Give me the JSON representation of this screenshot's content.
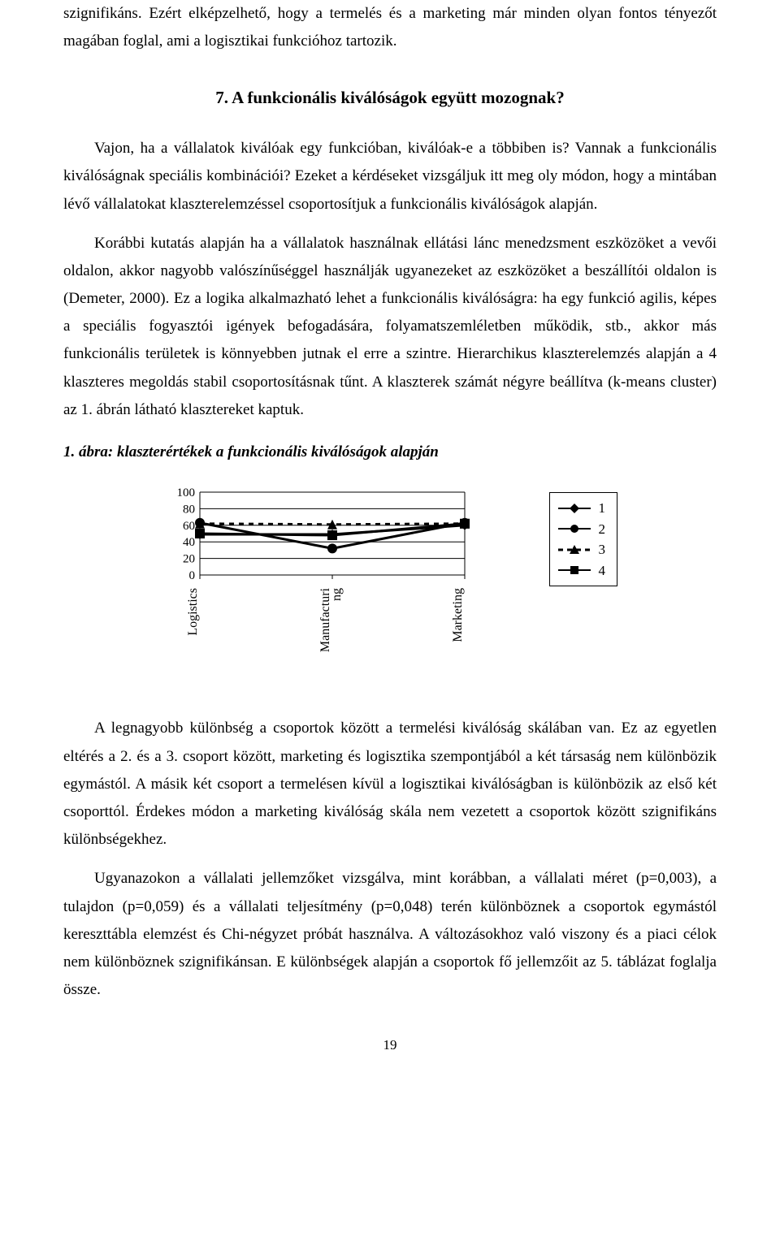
{
  "paragraphs": {
    "p1": "szignifikáns. Ezért elképzelhető, hogy a termelés és a marketing már minden olyan fontos tényezőt magában foglal, ami a logisztikai funkcióhoz tartozik.",
    "heading": "7. A funkcionális kiválóságok együtt mozognak?",
    "p2": "Vajon, ha a vállalatok kiválóak egy funkcióban, kiválóak-e a többiben is? Vannak a funkcionális kiválóságnak speciális kombinációi? Ezeket a kérdéseket vizsgáljuk itt meg oly módon, hogy a mintában lévő vállalatokat klaszterelemzéssel csoportosítjuk a funkcionális kiválóságok alapján.",
    "p3": "Korábbi kutatás alapján ha a vállalatok használnak ellátási lánc menedzsment eszközöket a vevői oldalon, akkor nagyobb valószínűséggel használják ugyanezeket az eszközöket a beszállítói oldalon is (Demeter, 2000). Ez a logika alkalmazható lehet a funkcionális kiválóságra: ha egy funkció agilis, képes a speciális fogyasztói igények befogadására, folyamatszemléletben működik, stb., akkor más funkcionális területek is könnyebben jutnak el erre a szintre. Hierarchikus klaszterelemzés alapján a 4 klaszteres megoldás stabil csoportosításnak tűnt. A klaszterek számát négyre beállítva (k-means cluster) az 1. ábrán látható klasztereket kaptuk.",
    "caption": "1. ábra: klaszterértékek a funkcionális kiválóságok alapján",
    "p4": "A legnagyobb különbség a csoportok között a termelési kiválóság skálában van. Ez az egyetlen eltérés a 2. és a 3. csoport között, marketing és logisztika szempontjából a két társaság nem különbözik egymástól. A másik két csoport a termelésen kívül a logisztikai kiválóságban is különbözik az első két csoporttól. Érdekes módon a marketing kiválóság skála nem vezetett a csoportok között szignifikáns különbségekhez.",
    "p5": "Ugyanazokon a vállalati jellemzőket vizsgálva, mint korábban, a vállalati méret (p=0,003), a tulajdon (p=0,059) és a vállalati teljesítmény (p=0,048) terén különböznek a csoportok egymástól kereszttábla elemzést és Chi-négyzet próbát használva. A változásokhoz való viszony és a piaci célok nem különböznek szignifikánsan. E különbségek alapján a csoportok fő jellemzőit az 5. táblázat foglalja össze."
  },
  "page_number": "19",
  "chart": {
    "type": "line",
    "categories": [
      "Logistics",
      "Manufacturi\nng",
      "Marketing"
    ],
    "ylim": [
      0,
      100
    ],
    "yticks": [
      0,
      20,
      40,
      60,
      80,
      100
    ],
    "ytick_labels": [
      "0",
      "20",
      "40",
      "60",
      "80",
      "100"
    ],
    "grid_color": "#000000",
    "background_color": "#ffffff",
    "line_width": 3,
    "marker_size": 6,
    "label_fontsize": 15,
    "series": [
      {
        "name": "1",
        "color": "#000000",
        "marker": "diamond",
        "dash": "none",
        "values": [
          49,
          49,
          60
        ]
      },
      {
        "name": "2",
        "color": "#000000",
        "marker": "circle",
        "dash": "none",
        "values": [
          63,
          32,
          63
        ]
      },
      {
        "name": "3",
        "color": "#000000",
        "marker": "triangle",
        "dash": "6,6",
        "values": [
          62,
          61,
          62
        ]
      },
      {
        "name": "4",
        "color": "#000000",
        "marker": "square",
        "dash": "none",
        "values": [
          50,
          48,
          62
        ]
      }
    ]
  },
  "legend_labels": [
    "1",
    "2",
    "3",
    "4"
  ]
}
